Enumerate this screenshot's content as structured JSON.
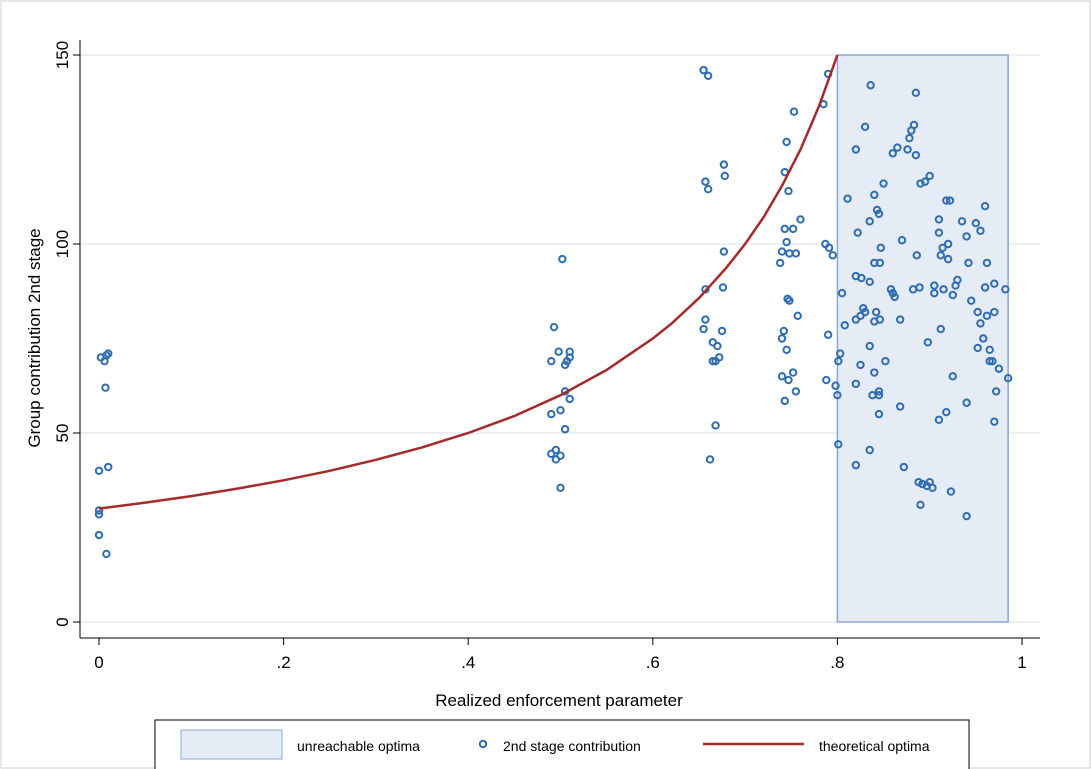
{
  "chart_data": {
    "type": "scatter",
    "xlabel": "Realized enforcement parameter",
    "ylabel": "Group contribution 2nd stage",
    "xlim": [
      0,
      1
    ],
    "ylim": [
      0,
      150
    ],
    "x_ticks": [
      {
        "value": 0,
        "label": "0"
      },
      {
        "value": 0.2,
        "label": ".2"
      },
      {
        "value": 0.4,
        "label": ".4"
      },
      {
        "value": 0.6,
        "label": ".6"
      },
      {
        "value": 0.8,
        "label": ".8"
      },
      {
        "value": 1,
        "label": "1"
      }
    ],
    "y_ticks": [
      {
        "value": 0,
        "label": "0"
      },
      {
        "value": 50,
        "label": "50"
      },
      {
        "value": 100,
        "label": "100"
      },
      {
        "value": 150,
        "label": "150"
      }
    ],
    "grid": "horizontal",
    "legend_position": "bottom",
    "colors": {
      "points": "#2e6db4",
      "curve": "#a52a2a",
      "region_fill": "#e6ecf5",
      "region_stroke": "#8aaad0",
      "grid": "#dde6ee"
    },
    "region": {
      "name": "unreachable optima",
      "x": [
        0.8,
        0.985
      ],
      "y": [
        0,
        150
      ]
    },
    "curve": {
      "name": "theoretical optima",
      "points": [
        [
          0,
          30
        ],
        [
          0.05,
          31.6
        ],
        [
          0.1,
          33.3
        ],
        [
          0.15,
          35.3
        ],
        [
          0.2,
          37.5
        ],
        [
          0.25,
          40
        ],
        [
          0.3,
          42.9
        ],
        [
          0.35,
          46.2
        ],
        [
          0.4,
          50
        ],
        [
          0.45,
          54.5
        ],
        [
          0.5,
          60
        ],
        [
          0.55,
          66.7
        ],
        [
          0.6,
          75
        ],
        [
          0.62,
          78.9
        ],
        [
          0.65,
          85.7
        ],
        [
          0.68,
          93.8
        ],
        [
          0.7,
          100
        ],
        [
          0.72,
          107.1
        ],
        [
          0.74,
          115.4
        ],
        [
          0.76,
          125
        ],
        [
          0.78,
          136.4
        ],
        [
          0.8,
          150
        ]
      ]
    },
    "series": [
      {
        "name": "2nd stage contribution",
        "points": [
          [
            0,
            29.5
          ],
          [
            0,
            28.5
          ],
          [
            0,
            23
          ],
          [
            0,
            40
          ],
          [
            0.008,
            18
          ],
          [
            0.01,
            41
          ],
          [
            0.002,
            70
          ],
          [
            0.006,
            69
          ],
          [
            0.008,
            70.5
          ],
          [
            0.01,
            71
          ],
          [
            0.007,
            62
          ],
          [
            0.49,
            69
          ],
          [
            0.493,
            78
          ],
          [
            0.498,
            71.5
          ],
          [
            0.507,
            69
          ],
          [
            0.51,
            70
          ],
          [
            0.505,
            68
          ],
          [
            0.51,
            71.5
          ],
          [
            0.502,
            96
          ],
          [
            0.49,
            55
          ],
          [
            0.5,
            56
          ],
          [
            0.505,
            61
          ],
          [
            0.51,
            59
          ],
          [
            0.505,
            51
          ],
          [
            0.49,
            44.5
          ],
          [
            0.495,
            45.5
          ],
          [
            0.5,
            44
          ],
          [
            0.495,
            43
          ],
          [
            0.5,
            35.5
          ],
          [
            0.655,
            146
          ],
          [
            0.66,
            144.5
          ],
          [
            0.657,
            116.5
          ],
          [
            0.66,
            114.5
          ],
          [
            0.677,
            121
          ],
          [
            0.678,
            118
          ],
          [
            0.677,
            98
          ],
          [
            0.657,
            88
          ],
          [
            0.676,
            88.5
          ],
          [
            0.657,
            80
          ],
          [
            0.655,
            77.5
          ],
          [
            0.675,
            77
          ],
          [
            0.665,
            74
          ],
          [
            0.67,
            73
          ],
          [
            0.672,
            70
          ],
          [
            0.665,
            69
          ],
          [
            0.668,
            69
          ],
          [
            0.668,
            52
          ],
          [
            0.662,
            43
          ],
          [
            0.745,
            127
          ],
          [
            0.743,
            119
          ],
          [
            0.747,
            114
          ],
          [
            0.753,
            135
          ],
          [
            0.76,
            106.5
          ],
          [
            0.743,
            104
          ],
          [
            0.752,
            104
          ],
          [
            0.745,
            100.5
          ],
          [
            0.74,
            98
          ],
          [
            0.755,
            97.5
          ],
          [
            0.748,
            97.5
          ],
          [
            0.738,
            95
          ],
          [
            0.746,
            85.5
          ],
          [
            0.748,
            85
          ],
          [
            0.757,
            81
          ],
          [
            0.742,
            77
          ],
          [
            0.74,
            75
          ],
          [
            0.745,
            72
          ],
          [
            0.752,
            66
          ],
          [
            0.74,
            65
          ],
          [
            0.747,
            64
          ],
          [
            0.755,
            61
          ],
          [
            0.743,
            58.5
          ],
          [
            0.785,
            137
          ],
          [
            0.79,
            145
          ],
          [
            0.787,
            100
          ],
          [
            0.795,
            97
          ],
          [
            0.791,
            99
          ],
          [
            0.79,
            76
          ],
          [
            0.788,
            64
          ],
          [
            0.798,
            62.5
          ],
          [
            0.8,
            60
          ],
          [
            0.803,
            71
          ],
          [
            0.805,
            87
          ],
          [
            0.801,
            47
          ],
          [
            0.801,
            69
          ],
          [
            0.811,
            112
          ],
          [
            0.808,
            78.5
          ],
          [
            0.83,
            131
          ],
          [
            0.836,
            142
          ],
          [
            0.82,
            125
          ],
          [
            0.822,
            103
          ],
          [
            0.84,
            113
          ],
          [
            0.845,
            108
          ],
          [
            0.835,
            106
          ],
          [
            0.843,
            109
          ],
          [
            0.846,
            95
          ],
          [
            0.84,
            95
          ],
          [
            0.82,
            91.5
          ],
          [
            0.826,
            91
          ],
          [
            0.835,
            90
          ],
          [
            0.83,
            82
          ],
          [
            0.828,
            83
          ],
          [
            0.82,
            80
          ],
          [
            0.825,
            81
          ],
          [
            0.842,
            82
          ],
          [
            0.84,
            79.5
          ],
          [
            0.846,
            80
          ],
          [
            0.835,
            73
          ],
          [
            0.825,
            68
          ],
          [
            0.84,
            66
          ],
          [
            0.82,
            63
          ],
          [
            0.838,
            60
          ],
          [
            0.845,
            60
          ],
          [
            0.845,
            61
          ],
          [
            0.845,
            55
          ],
          [
            0.835,
            45.5
          ],
          [
            0.82,
            41.5
          ],
          [
            0.85,
            116
          ],
          [
            0.847,
            99
          ],
          [
            0.852,
            69
          ],
          [
            0.86,
            87
          ],
          [
            0.858,
            88
          ],
          [
            0.862,
            86
          ],
          [
            0.86,
            124
          ],
          [
            0.865,
            125.5
          ],
          [
            0.868,
            57
          ],
          [
            0.868,
            80
          ],
          [
            0.87,
            101
          ],
          [
            0.872,
            41
          ],
          [
            0.88,
            130
          ],
          [
            0.878,
            128
          ],
          [
            0.883,
            131.5
          ],
          [
            0.885,
            140
          ],
          [
            0.885,
            123.5
          ],
          [
            0.876,
            125
          ],
          [
            0.882,
            88
          ],
          [
            0.886,
            97
          ],
          [
            0.889,
            88.5
          ],
          [
            0.89,
            116
          ],
          [
            0.895,
            116.5
          ],
          [
            0.9,
            118
          ],
          [
            0.898,
            74
          ],
          [
            0.888,
            37
          ],
          [
            0.892,
            36.5
          ],
          [
            0.897,
            36
          ],
          [
            0.9,
            37
          ],
          [
            0.903,
            35.5
          ],
          [
            0.89,
            31
          ],
          [
            0.905,
            89
          ],
          [
            0.91,
            106.5
          ],
          [
            0.91,
            103
          ],
          [
            0.914,
            99
          ],
          [
            0.912,
            97
          ],
          [
            0.915,
            88
          ],
          [
            0.918,
            111.5
          ],
          [
            0.922,
            111.5
          ],
          [
            0.92,
            96
          ],
          [
            0.92,
            100
          ],
          [
            0.912,
            77.5
          ],
          [
            0.925,
            86.5
          ],
          [
            0.928,
            89
          ],
          [
            0.93,
            90.5
          ],
          [
            0.925,
            65
          ],
          [
            0.918,
            55.5
          ],
          [
            0.91,
            53.5
          ],
          [
            0.923,
            34.5
          ],
          [
            0.94,
            28
          ],
          [
            0.935,
            106
          ],
          [
            0.94,
            102
          ],
          [
            0.942,
            95
          ],
          [
            0.945,
            85
          ],
          [
            0.95,
            105.5
          ],
          [
            0.952,
            82
          ],
          [
            0.955,
            103.5
          ],
          [
            0.96,
            110
          ],
          [
            0.962,
            95
          ],
          [
            0.955,
            79
          ],
          [
            0.952,
            72.5
          ],
          [
            0.958,
            75
          ],
          [
            0.96,
            88.5
          ],
          [
            0.962,
            81
          ],
          [
            0.965,
            69
          ],
          [
            0.968,
            69
          ],
          [
            0.965,
            72
          ],
          [
            0.97,
            89.5
          ],
          [
            0.97,
            82
          ],
          [
            0.975,
            67
          ],
          [
            0.97,
            53
          ],
          [
            0.972,
            61
          ],
          [
            0.982,
            88
          ],
          [
            0.985,
            64.5
          ],
          [
            0.94,
            58
          ],
          [
            0.905,
            87
          ]
        ]
      }
    ],
    "legend": [
      {
        "kind": "box",
        "label": "unreachable optima"
      },
      {
        "kind": "marker",
        "label": "2nd stage contribution"
      },
      {
        "kind": "line",
        "label": "theoretical optima"
      }
    ]
  }
}
